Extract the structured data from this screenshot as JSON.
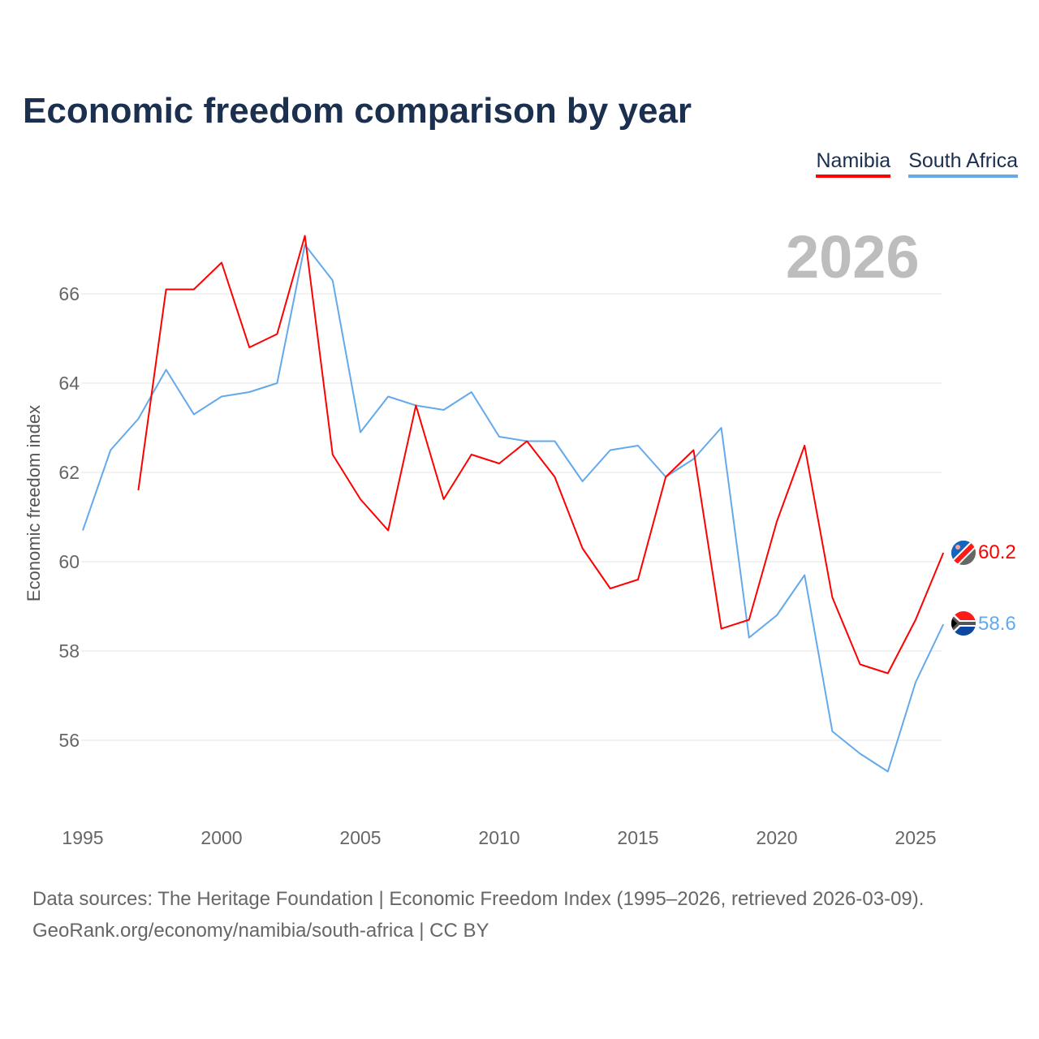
{
  "chart_data": {
    "type": "line",
    "title": "Economic freedom comparison by year",
    "xlabel": "",
    "ylabel": "Economic freedom index",
    "xlim": [
      1995,
      2026
    ],
    "ylim": [
      55,
      67.5
    ],
    "x_ticks": [
      1995,
      2000,
      2005,
      2010,
      2015,
      2020,
      2025
    ],
    "y_ticks": [
      56,
      58,
      60,
      62,
      64,
      66
    ],
    "grid": true,
    "legend_position": "top-right",
    "current_year_label": "2026",
    "series": [
      {
        "name": "Namibia",
        "color": "#ff0000",
        "end_label": "60.2",
        "flag": "namibia-flag",
        "x": [
          1997,
          1998,
          1999,
          2000,
          2001,
          2002,
          2003,
          2004,
          2005,
          2006,
          2007,
          2008,
          2009,
          2010,
          2011,
          2012,
          2013,
          2014,
          2015,
          2016,
          2017,
          2018,
          2019,
          2020,
          2021,
          2022,
          2023,
          2024,
          2025,
          2026
        ],
        "values": [
          61.6,
          66.1,
          66.1,
          66.7,
          64.8,
          65.1,
          67.3,
          62.4,
          61.4,
          60.7,
          63.5,
          61.4,
          62.4,
          62.2,
          62.7,
          61.9,
          60.3,
          59.4,
          59.6,
          61.9,
          62.5,
          58.5,
          58.7,
          60.9,
          62.6,
          59.2,
          57.7,
          57.5,
          58.7,
          60.2
        ]
      },
      {
        "name": "South Africa",
        "color": "#63a9ec",
        "end_label": "58.6",
        "flag": "south-africa-flag",
        "x": [
          1995,
          1996,
          1997,
          1998,
          1999,
          2000,
          2001,
          2002,
          2003,
          2004,
          2005,
          2006,
          2007,
          2008,
          2009,
          2010,
          2011,
          2012,
          2013,
          2014,
          2015,
          2016,
          2017,
          2018,
          2019,
          2020,
          2021,
          2022,
          2023,
          2024,
          2025,
          2026
        ],
        "values": [
          60.7,
          62.5,
          63.2,
          64.3,
          63.3,
          63.7,
          63.8,
          64.0,
          67.1,
          66.3,
          62.9,
          63.7,
          63.5,
          63.4,
          63.8,
          62.8,
          62.7,
          62.7,
          61.8,
          62.5,
          62.6,
          61.9,
          62.3,
          63.0,
          58.3,
          58.8,
          59.7,
          56.2,
          55.7,
          55.3,
          57.3,
          58.6
        ]
      }
    ]
  },
  "source": {
    "line1": "Data sources: The Heritage Foundation | Economic Freedom Index (1995–2026, retrieved 2026-03-09).",
    "line2": "GeoRank.org/economy/namibia/south-africa | CC BY"
  }
}
